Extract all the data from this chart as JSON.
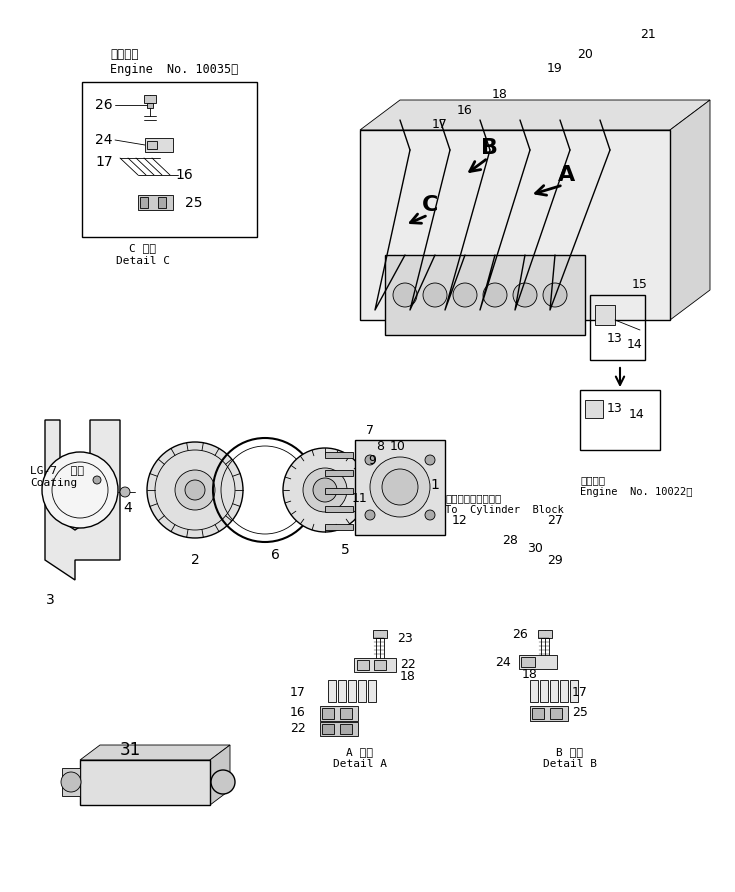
{
  "bg_color": "#ffffff",
  "line_color": "#000000",
  "fig_width": 7.35,
  "fig_height": 8.92,
  "dpi": 100,
  "texts": {
    "engine_no1_jp": "適用号機",
    "engine_no1_en": "Engine  No. 10035～",
    "engine_no2_jp": "適用号機",
    "engine_no2_en": "Engine  No. 10022～",
    "detail_c_jp": "C 詳細",
    "detail_c_en": "Detail C",
    "detail_a_jp": "A 詳細",
    "detail_a_en": "Detail A",
    "detail_b_jp": "B 詳細",
    "detail_b_en": "Detail B",
    "lg7_coat_jp": "塗布",
    "lg7": "LG-7  Coating",
    "to_cyl_jp": "シリンダブロックへ",
    "to_cyl_en": "To  Cylinder  Block"
  }
}
